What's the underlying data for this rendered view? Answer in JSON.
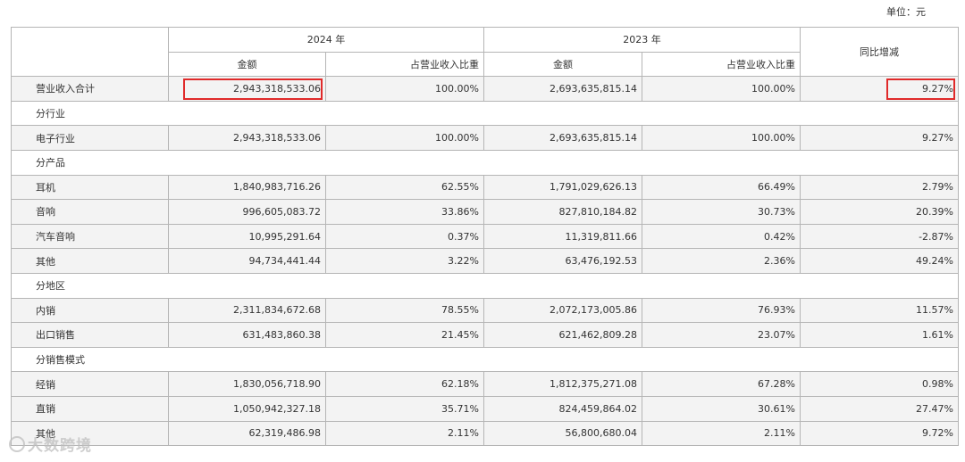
{
  "unit_label": "单位：元",
  "header": {
    "year_2024": "2024 年",
    "year_2023": "2023 年",
    "yoy": "同比增减",
    "amount": "金额",
    "share": "占营业收入比重"
  },
  "total": {
    "label": "营业收入合计",
    "amt2024": "2,943,318,533.06",
    "pct2024": "100.00%",
    "amt2023": "2,693,635,815.14",
    "pct2023": "100.00%",
    "yoy": "9.27%"
  },
  "sections": [
    {
      "title": "分行业",
      "rows": [
        {
          "label": "电子行业",
          "amt2024": "2,943,318,533.06",
          "pct2024": "100.00%",
          "amt2023": "2,693,635,815.14",
          "pct2023": "100.00%",
          "yoy": "9.27%"
        }
      ]
    },
    {
      "title": "分产品",
      "rows": [
        {
          "label": "耳机",
          "amt2024": "1,840,983,716.26",
          "pct2024": "62.55%",
          "amt2023": "1,791,029,626.13",
          "pct2023": "66.49%",
          "yoy": "2.79%"
        },
        {
          "label": "音响",
          "amt2024": "996,605,083.72",
          "pct2024": "33.86%",
          "amt2023": "827,810,184.82",
          "pct2023": "30.73%",
          "yoy": "20.39%"
        },
        {
          "label": "汽车音响",
          "amt2024": "10,995,291.64",
          "pct2024": "0.37%",
          "amt2023": "11,319,811.66",
          "pct2023": "0.42%",
          "yoy": "-2.87%"
        },
        {
          "label": "其他",
          "amt2024": "94,734,441.44",
          "pct2024": "3.22%",
          "amt2023": "63,476,192.53",
          "pct2023": "2.36%",
          "yoy": "49.24%"
        }
      ]
    },
    {
      "title": "分地区",
      "rows": [
        {
          "label": "内销",
          "amt2024": "2,311,834,672.68",
          "pct2024": "78.55%",
          "amt2023": "2,072,173,005.86",
          "pct2023": "76.93%",
          "yoy": "11.57%"
        },
        {
          "label": "出口销售",
          "amt2024": "631,483,860.38",
          "pct2024": "21.45%",
          "amt2023": "621,462,809.28",
          "pct2023": "23.07%",
          "yoy": "1.61%"
        }
      ]
    },
    {
      "title": "分销售模式",
      "rows": [
        {
          "label": "经销",
          "amt2024": "1,830,056,718.90",
          "pct2024": "62.18%",
          "amt2023": "1,812,375,271.08",
          "pct2023": "67.28%",
          "yoy": "0.98%"
        },
        {
          "label": "直销",
          "amt2024": "1,050,942,327.18",
          "pct2024": "35.71%",
          "amt2023": "824,459,864.02",
          "pct2023": "30.61%",
          "yoy": "27.47%"
        },
        {
          "label": "其他",
          "amt2024": "62,319,486.98",
          "pct2024": "2.11%",
          "amt2023": "56,800,680.04",
          "pct2023": "2.11%",
          "yoy": "9.72%"
        }
      ]
    }
  ],
  "watermark": "大数跨境",
  "highlight_color": "#e02a2a"
}
